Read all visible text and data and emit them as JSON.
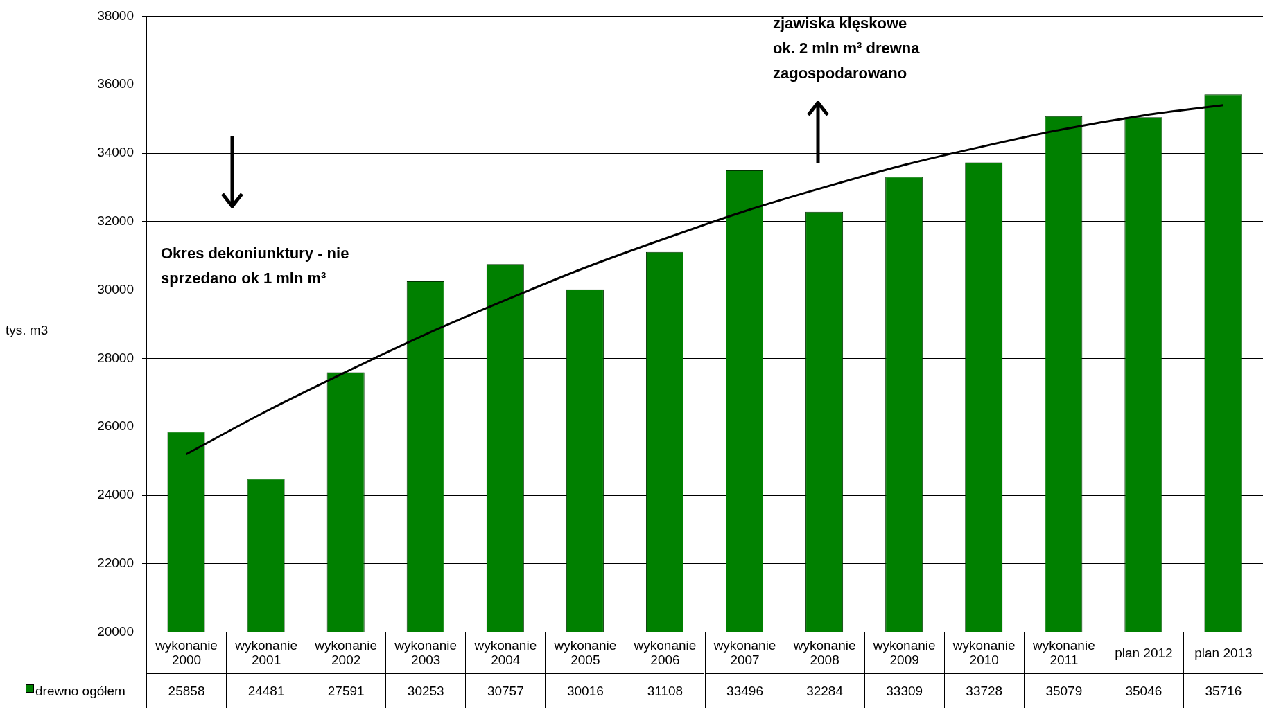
{
  "chart_data": {
    "type": "bar",
    "ylabel": "tys. m3",
    "categories": [
      "wykonanie 2000",
      "wykonanie 2001",
      "wykonanie 2002",
      "wykonanie 2003",
      "wykonanie 2004",
      "wykonanie 2005",
      "wykonanie 2006",
      "wykonanie 2007",
      "wykonanie 2008",
      "wykonanie 2009",
      "wykonanie 2010",
      "wykonanie 2011",
      "plan 2012",
      "plan 2013"
    ],
    "series": [
      {
        "name": "drewno ogółem",
        "color": "#008000",
        "values": [
          25858,
          24481,
          27591,
          30253,
          30757,
          30016,
          31108,
          33496,
          32284,
          33309,
          33728,
          35079,
          35046,
          35716
        ],
        "value_labels": [
          "25858",
          "24481",
          "27591",
          "30253",
          "30757",
          "30016",
          "31108",
          "33496",
          "32284",
          "33309",
          "33728",
          "35079",
          "35046",
          "35716"
        ]
      },
      {
        "type": "line",
        "color": "#000000",
        "values": [
          25200,
          26450,
          27600,
          28700,
          29700,
          30650,
          31500,
          32300,
          33000,
          33650,
          34200,
          34700,
          35100,
          35400
        ]
      }
    ],
    "ylim": [
      20000,
      38000
    ],
    "yticks": [
      20000,
      22000,
      24000,
      26000,
      28000,
      30000,
      32000,
      34000,
      36000,
      38000
    ],
    "grid": "y",
    "legend": "bottom left",
    "annotations": [
      "Okres dekoniunktury - nie sprzedano ok 1 mln m³",
      "zjawiska klęskowe\nok. 2 mln m³ drewna\nzagospodarowano"
    ]
  }
}
